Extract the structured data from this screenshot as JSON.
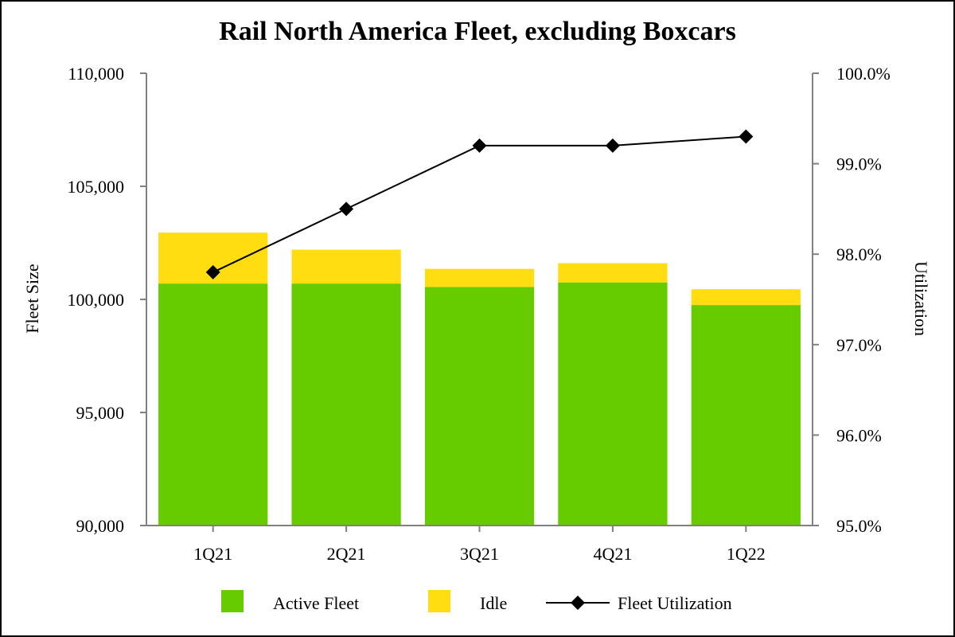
{
  "chart_data": {
    "type": "bar",
    "title": "Rail North America Fleet, excluding Boxcars",
    "categories": [
      "1Q21",
      "2Q21",
      "3Q21",
      "4Q21",
      "1Q22"
    ],
    "series": [
      {
        "name": "Active Fleet",
        "kind": "stacked-bar",
        "axis": "left",
        "color": "#66CC00",
        "values": [
          100700,
          100700,
          100550,
          100750,
          99750
        ]
      },
      {
        "name": "Idle",
        "kind": "stacked-bar",
        "axis": "left",
        "color": "#FFDD11",
        "values": [
          2250,
          1500,
          800,
          850,
          700
        ]
      },
      {
        "name": "Fleet Utilization",
        "kind": "line",
        "axis": "right",
        "color": "#000000",
        "values": [
          97.8,
          98.5,
          99.2,
          99.2,
          99.3
        ]
      }
    ],
    "ylabel": "Fleet Size",
    "y2label": "Utilization",
    "ylim": [
      90000,
      110000
    ],
    "y2lim": [
      95.0,
      100.0
    ],
    "yticks": [
      "90,000",
      "95,000",
      "100,000",
      "105,000",
      "110,000"
    ],
    "y2ticks": [
      "95.0%",
      "96.0%",
      "97.0%",
      "98.0%",
      "99.0%",
      "100.0%"
    ],
    "legend": {
      "position": "bottom",
      "labels": [
        "Active Fleet",
        "Idle",
        "Fleet Utilization"
      ]
    },
    "grid": false
  }
}
